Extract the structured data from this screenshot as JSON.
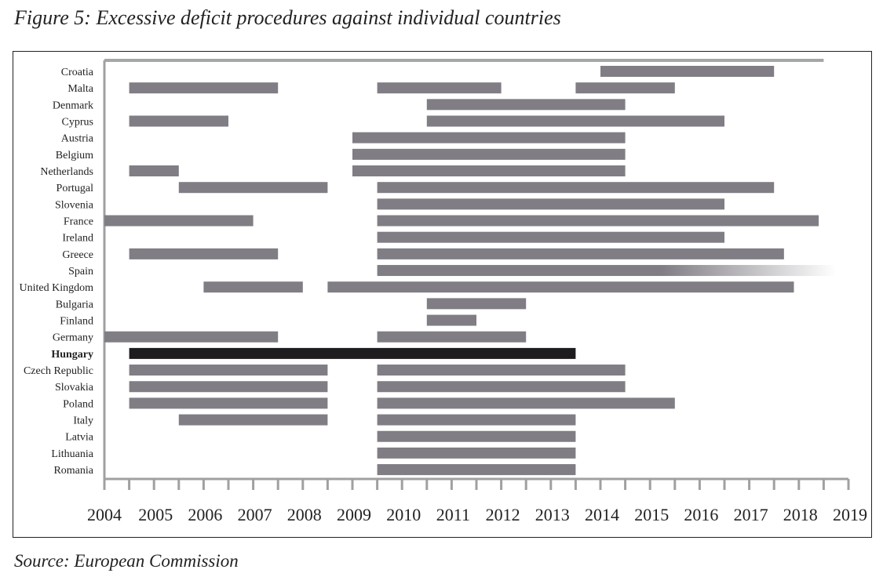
{
  "title": "Figure 5: Excessive deficit procedures against individual countries",
  "source": "Source: European Commission",
  "chart_data": {
    "type": "gantt",
    "xlim": [
      2004,
      2019
    ],
    "x_ticks": [
      "2004",
      "2005",
      "2006",
      "2007",
      "2008",
      "2009",
      "2010",
      "2011",
      "2012",
      "2013",
      "2014",
      "2015",
      "2016",
      "2017",
      "2018",
      "2019"
    ],
    "grid": false,
    "colors": {
      "bar": "#807d84",
      "highlight": "#1e1c1f",
      "top_line": "#a3a7a6"
    },
    "highlighted_country": "Hungary",
    "rows": [
      {
        "country": "Croatia",
        "periods": [
          [
            2014.0,
            2017.5
          ]
        ]
      },
      {
        "country": "Malta",
        "periods": [
          [
            2004.5,
            2007.5
          ],
          [
            2009.5,
            2012.0
          ],
          [
            2013.5,
            2015.5
          ]
        ]
      },
      {
        "country": "Denmark",
        "periods": [
          [
            2010.5,
            2014.5
          ]
        ]
      },
      {
        "country": "Cyprus",
        "periods": [
          [
            2004.5,
            2006.5
          ],
          [
            2010.5,
            2016.5
          ]
        ]
      },
      {
        "country": "Austria",
        "periods": [
          [
            2009.0,
            2014.5
          ]
        ]
      },
      {
        "country": "Belgium",
        "periods": [
          [
            2009.0,
            2014.5
          ]
        ]
      },
      {
        "country": "Netherlands",
        "periods": [
          [
            2004.5,
            2005.5
          ],
          [
            2009.0,
            2014.5
          ]
        ]
      },
      {
        "country": "Portugal",
        "periods": [
          [
            2005.5,
            2008.5
          ],
          [
            2009.5,
            2017.5
          ]
        ]
      },
      {
        "country": "Slovenia",
        "periods": [
          [
            2009.5,
            2016.5
          ]
        ]
      },
      {
        "country": "France",
        "periods": [
          [
            2004.0,
            2007.0
          ],
          [
            2009.5,
            2018.4
          ]
        ]
      },
      {
        "country": "Ireland",
        "periods": [
          [
            2009.5,
            2016.5
          ]
        ]
      },
      {
        "country": "Greece",
        "periods": [
          [
            2004.5,
            2007.5
          ],
          [
            2009.5,
            2017.7
          ]
        ]
      },
      {
        "country": "Spain",
        "periods": [
          [
            2009.5,
            2018.75
          ]
        ],
        "ongoing": true
      },
      {
        "country": "United Kingdom",
        "periods": [
          [
            2006.0,
            2008.0
          ],
          [
            2008.5,
            2017.9
          ]
        ]
      },
      {
        "country": "Bulgaria",
        "periods": [
          [
            2010.5,
            2012.5
          ]
        ]
      },
      {
        "country": "Finland",
        "periods": [
          [
            2010.5,
            2011.5
          ]
        ]
      },
      {
        "country": "Germany",
        "periods": [
          [
            2004.0,
            2007.5
          ],
          [
            2009.5,
            2012.5
          ]
        ]
      },
      {
        "country": "Hungary",
        "periods": [
          [
            2004.5,
            2013.5
          ]
        ]
      },
      {
        "country": "Czech Republic",
        "periods": [
          [
            2004.5,
            2008.5
          ],
          [
            2009.5,
            2014.5
          ]
        ]
      },
      {
        "country": "Slovakia",
        "periods": [
          [
            2004.5,
            2008.5
          ],
          [
            2009.5,
            2014.5
          ]
        ]
      },
      {
        "country": "Poland",
        "periods": [
          [
            2004.5,
            2008.5
          ],
          [
            2009.5,
            2015.5
          ]
        ]
      },
      {
        "country": "Italy",
        "periods": [
          [
            2005.5,
            2008.5
          ],
          [
            2009.5,
            2013.5
          ]
        ]
      },
      {
        "country": "Latvia",
        "periods": [
          [
            2009.5,
            2013.5
          ]
        ]
      },
      {
        "country": "Lithuania",
        "periods": [
          [
            2009.5,
            2013.5
          ]
        ]
      },
      {
        "country": "Romania",
        "periods": [
          [
            2009.5,
            2013.5
          ]
        ]
      }
    ]
  }
}
